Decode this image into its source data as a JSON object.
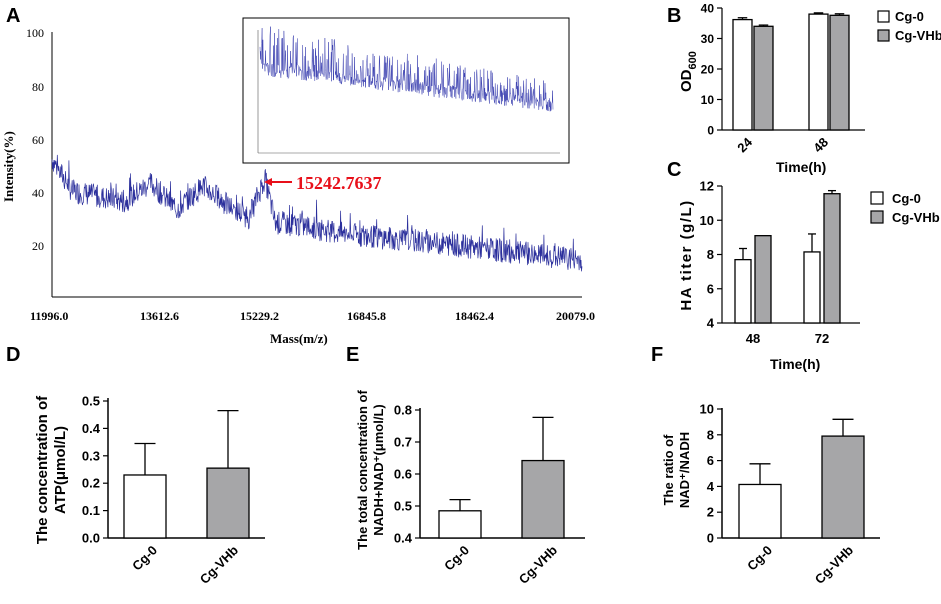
{
  "colors": {
    "spectrum": "#2b2f9c",
    "annotation": "#e8101a",
    "bar_control": "#ffffff",
    "bar_treated": "#a6a6a8"
  },
  "chart_data": [
    {
      "id": "A",
      "type": "line",
      "panel_label": "A",
      "xlabel": "Mass(m/z)",
      "ylabel": "Intensity(%)",
      "xlim": [
        11996.0,
        20079.0
      ],
      "ylim": [
        0,
        100
      ],
      "x_tick_labels": [
        "11996.0",
        "13612.6",
        "15229.2",
        "16845.8",
        "18462.4",
        "20079.0"
      ],
      "y_tick_labels": [
        "20",
        "40",
        "60",
        "80",
        "100"
      ],
      "annotation": {
        "text": "15242.7637",
        "x": 15242.7637,
        "y": 45
      },
      "series": [
        {
          "name": "spectrum",
          "profile_x": [
            11996,
            12300,
            12700,
            13100,
            13500,
            13900,
            14300,
            14700,
            15000,
            15242.76,
            15400,
            15800,
            16400,
            17200,
            18000,
            19000,
            20079
          ],
          "profile_y": [
            52,
            40,
            38,
            36,
            43,
            33,
            42,
            34,
            30,
            45,
            28,
            27,
            24,
            22,
            20,
            17,
            14
          ]
        }
      ],
      "inset": {
        "type": "line",
        "description_ticks": true
      }
    },
    {
      "id": "B",
      "type": "bar",
      "panel_label": "B",
      "categories": [
        "24",
        "48"
      ],
      "xlabel": "Time(h)",
      "ylabel": "OD600",
      "ylabel_main": "OD",
      "ylabel_sub": "600",
      "ylim": [
        0,
        40
      ],
      "y_tick_labels": [
        "0",
        "10",
        "20",
        "30",
        "40"
      ],
      "series": [
        {
          "name": "Cg-0",
          "values": [
            36.2,
            38.0
          ],
          "errors": [
            0.6,
            0.4
          ]
        },
        {
          "name": "Cg-VHb",
          "values": [
            34.0,
            37.6
          ],
          "errors": [
            0.4,
            0.5
          ]
        }
      ]
    },
    {
      "id": "C",
      "type": "bar",
      "panel_label": "C",
      "categories": [
        "48",
        "72"
      ],
      "xlabel": "Time(h)",
      "ylabel": "HA titer (g/L)",
      "ylim": [
        4,
        12
      ],
      "y_tick_labels": [
        "4",
        "6",
        "8",
        "10",
        "12"
      ],
      "series": [
        {
          "name": "Cg-0",
          "values": [
            7.7,
            8.15
          ],
          "errors": [
            0.65,
            1.05
          ]
        },
        {
          "name": "Cg-VHb",
          "values": [
            9.1,
            11.55
          ],
          "errors": [
            0,
            0.18
          ]
        }
      ]
    },
    {
      "id": "D",
      "type": "bar",
      "panel_label": "D",
      "categories": [
        "Cg-0",
        "Cg-VHb"
      ],
      "ylabel_lines": [
        "The concentration of",
        "ATP(μmol/L)"
      ],
      "ylim": [
        0,
        0.5
      ],
      "y_tick_labels": [
        "0.0",
        "0.1",
        "0.2",
        "0.3",
        "0.4",
        "0.5"
      ],
      "values": [
        0.23,
        0.255
      ],
      "errors": [
        0.115,
        0.21
      ]
    },
    {
      "id": "E",
      "type": "bar",
      "panel_label": "E",
      "categories": [
        "Cg-0",
        "Cg-VHb"
      ],
      "ylabel_lines": [
        "The total concentration of",
        "NADH+NAD⁺(μmol/L)"
      ],
      "ylim": [
        0.4,
        0.8
      ],
      "y_tick_labels": [
        "0.4",
        "0.5",
        "0.6",
        "0.7",
        "0.8"
      ],
      "values": [
        0.485,
        0.642
      ],
      "errors": [
        0.035,
        0.135
      ]
    },
    {
      "id": "F",
      "type": "bar",
      "panel_label": "F",
      "categories": [
        "Cg-0",
        "Cg-VHb"
      ],
      "ylabel_lines": [
        "The ratio of",
        "NAD⁺/NADH"
      ],
      "ylim": [
        0,
        10
      ],
      "y_tick_labels": [
        "0",
        "2",
        "4",
        "6",
        "8",
        "10"
      ],
      "values": [
        4.15,
        7.9
      ],
      "errors": [
        1.6,
        1.3
      ]
    }
  ]
}
